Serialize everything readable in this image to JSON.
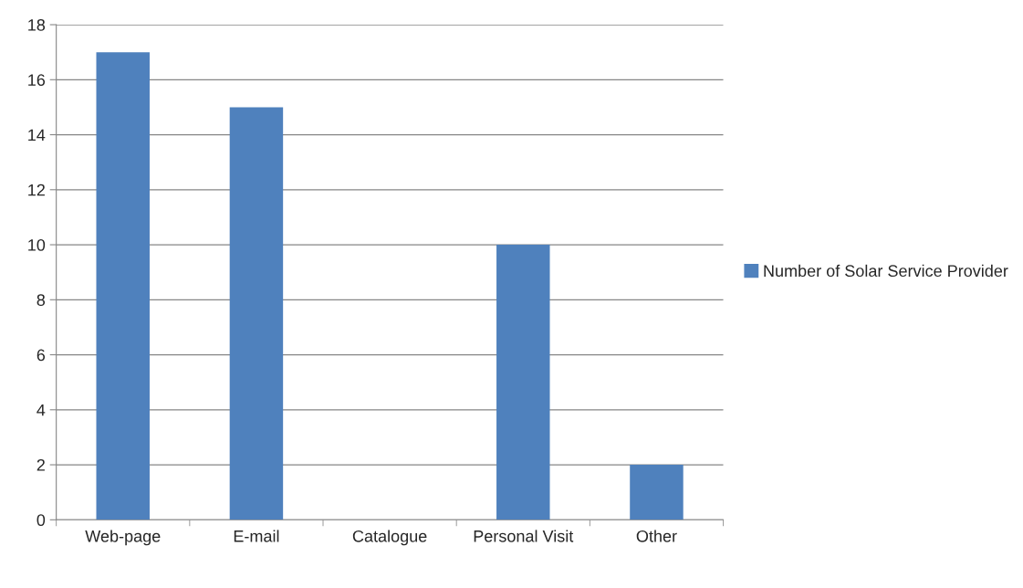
{
  "chart_data": {
    "type": "bar",
    "categories": [
      "Web-page",
      "E-mail",
      "Catalogue",
      "Personal Visit",
      "Other"
    ],
    "series": [
      {
        "name": "Number of Solar Service Provider",
        "color": "#4f81bd",
        "values": [
          17,
          15,
          0,
          10,
          2
        ]
      }
    ],
    "ylim": [
      0,
      18
    ],
    "yticks": [
      0,
      2,
      4,
      6,
      8,
      10,
      12,
      14,
      16,
      18
    ],
    "grid": "y",
    "legend": "right"
  }
}
